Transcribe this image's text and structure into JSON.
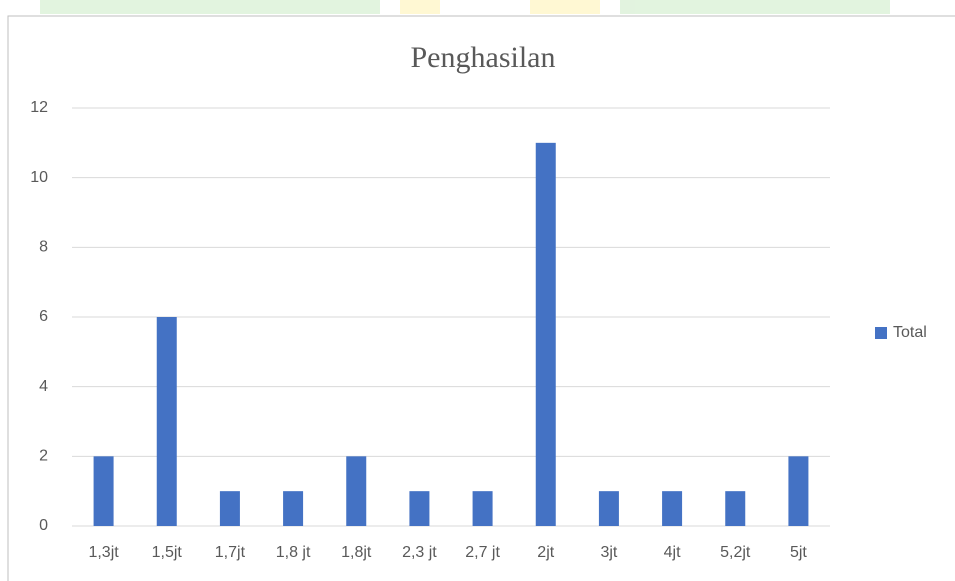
{
  "chart_data": {
    "type": "bar",
    "title": "Penghasilan",
    "categories": [
      "1,3jt",
      "1,5jt",
      "1,7jt",
      "1,8 jt",
      "1,8jt",
      "2,3 jt",
      "2,7 jt",
      "2jt",
      "3jt",
      "4jt",
      "5,2jt",
      "5jt"
    ],
    "series": [
      {
        "name": "Total",
        "color": "#4472c4",
        "values": [
          2,
          6,
          1,
          1,
          2,
          1,
          1,
          11,
          1,
          1,
          1,
          2
        ]
      }
    ],
    "ylim": [
      0,
      12
    ],
    "yticks": [
      0,
      2,
      4,
      6,
      8,
      10,
      12
    ],
    "grid": true,
    "legend": "right"
  }
}
